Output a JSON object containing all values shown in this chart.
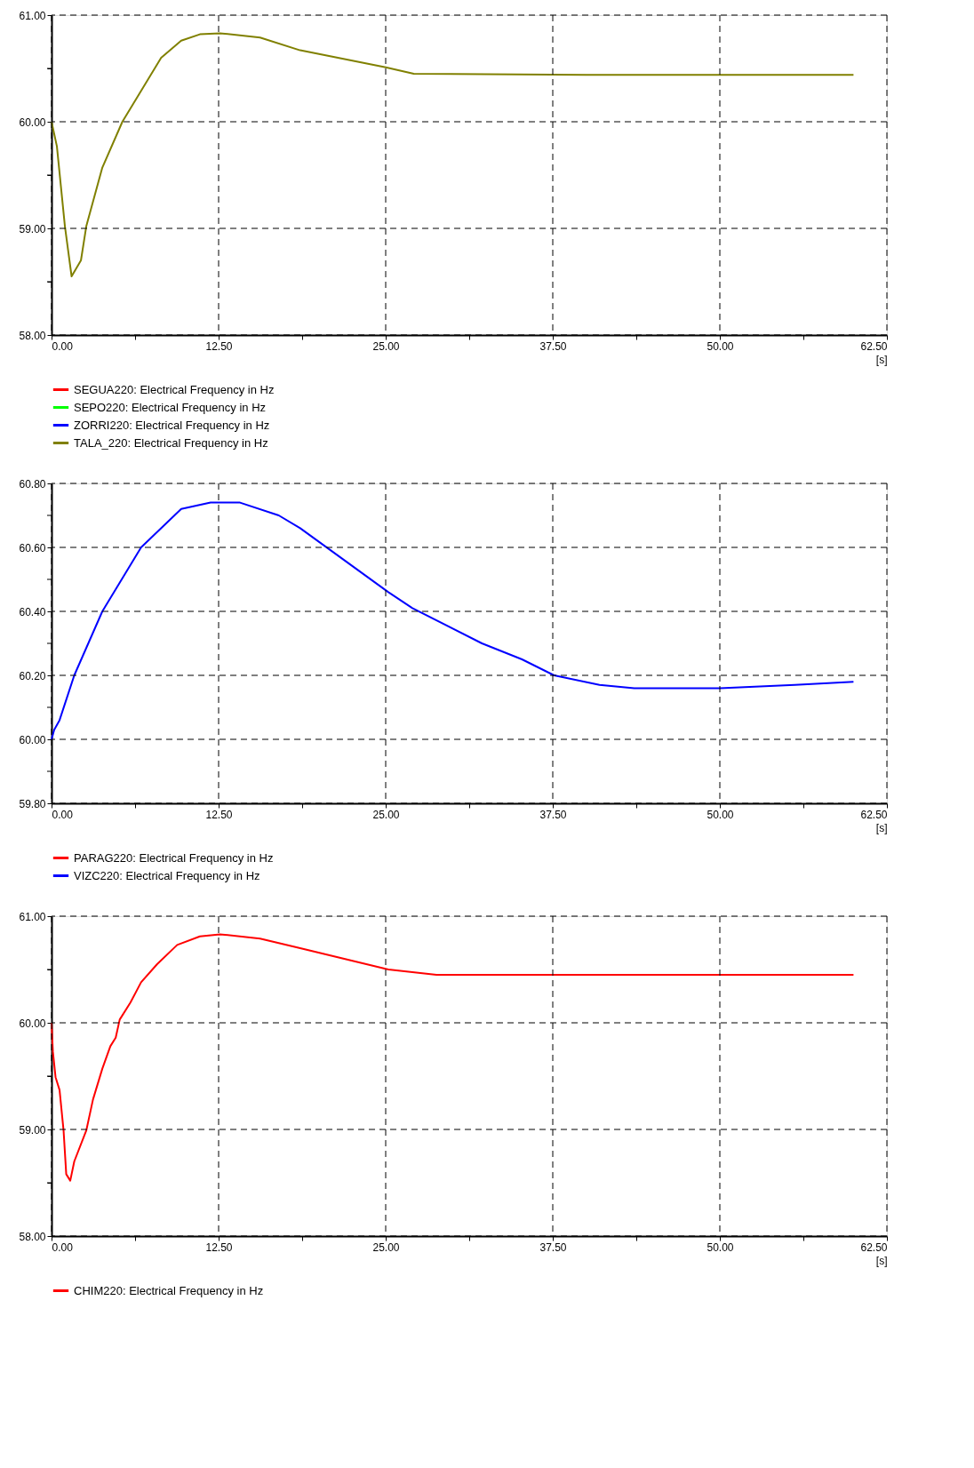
{
  "chart_data": [
    {
      "type": "line",
      "xlabel": "[s]",
      "xlim": [
        0,
        62.5
      ],
      "ylim": [
        58,
        61
      ],
      "grid": true,
      "legend": "bottom",
      "marker": "none",
      "line_style": "solid",
      "xticks": [
        {
          "value": 0,
          "label": "0.00"
        },
        {
          "value": 6.25,
          "label": null
        },
        {
          "value": 12.5,
          "label": "12.50"
        },
        {
          "value": 18.75,
          "label": null
        },
        {
          "value": 25,
          "label": "25.00"
        },
        {
          "value": 31.25,
          "label": null
        },
        {
          "value": 37.5,
          "label": "37.50"
        },
        {
          "value": 43.75,
          "label": null
        },
        {
          "value": 50,
          "label": "50.00"
        },
        {
          "value": 56.25,
          "label": null
        },
        {
          "value": 62.5,
          "label": "62.50"
        }
      ],
      "yticks": [
        {
          "value": 58,
          "label": "58.00"
        },
        {
          "value": 58.5,
          "label": null
        },
        {
          "value": 59,
          "label": "59.00"
        },
        {
          "value": 59.5,
          "label": null
        },
        {
          "value": 60,
          "label": "60.00"
        },
        {
          "value": 60.5,
          "label": null
        },
        {
          "value": 61,
          "label": "61.00"
        }
      ],
      "x": [
        0,
        0.4,
        1.0,
        1.5,
        2.2,
        2.6,
        3.8,
        5.3,
        6.7,
        8.2,
        9.7,
        11.1,
        12.6,
        15.6,
        18.6,
        25,
        27.1,
        40,
        50,
        60
      ],
      "series": [
        {
          "name": "SEGUA220: Electrical Frequency in Hz",
          "color": "#ff0000",
          "values": [
            null,
            null,
            null,
            null,
            null,
            null,
            null,
            null,
            null,
            null,
            null,
            null,
            null,
            null,
            null,
            null,
            null,
            null,
            null,
            null
          ]
        },
        {
          "name": "SEPO220: Electrical Frequency in Hz",
          "color": "#00ff00",
          "values": [
            null,
            null,
            null,
            null,
            null,
            null,
            null,
            null,
            null,
            null,
            null,
            null,
            null,
            null,
            null,
            null,
            null,
            null,
            null,
            null
          ]
        },
        {
          "name": "ZORRI220: Electrical Frequency in Hz",
          "color": "#0000ff",
          "values": [
            null,
            null,
            null,
            null,
            null,
            null,
            null,
            null,
            null,
            null,
            null,
            null,
            null,
            null,
            null,
            null,
            null,
            null,
            null,
            null
          ]
        },
        {
          "name": "TALA_220: Electrical Frequency in Hz",
          "color": "#808000",
          "values": [
            60.0,
            59.77,
            59.02,
            58.55,
            58.7,
            59.02,
            59.57,
            60.0,
            60.29,
            60.6,
            60.76,
            60.82,
            60.83,
            60.79,
            60.67,
            60.51,
            60.45,
            60.44,
            60.44,
            60.44
          ]
        }
      ]
    },
    {
      "type": "line",
      "xlabel": "[s]",
      "xlim": [
        0,
        62.5
      ],
      "ylim": [
        59.8,
        60.8
      ],
      "grid": true,
      "legend": "bottom",
      "marker": "none",
      "line_style": "solid",
      "xticks": [
        {
          "value": 0,
          "label": "0.00"
        },
        {
          "value": 6.25,
          "label": null
        },
        {
          "value": 12.5,
          "label": "12.50"
        },
        {
          "value": 18.75,
          "label": null
        },
        {
          "value": 25,
          "label": "25.00"
        },
        {
          "value": 31.25,
          "label": null
        },
        {
          "value": 37.5,
          "label": "37.50"
        },
        {
          "value": 43.75,
          "label": null
        },
        {
          "value": 50,
          "label": "50.00"
        },
        {
          "value": 56.25,
          "label": null
        },
        {
          "value": 62.5,
          "label": "62.50"
        }
      ],
      "yticks": [
        {
          "value": 59.8,
          "label": "59.80"
        },
        {
          "value": 59.9,
          "label": null
        },
        {
          "value": 60.0,
          "label": "60.00"
        },
        {
          "value": 60.1,
          "label": null
        },
        {
          "value": 60.2,
          "label": "60.20"
        },
        {
          "value": 60.3,
          "label": null
        },
        {
          "value": 60.4,
          "label": "60.40"
        },
        {
          "value": 60.5,
          "label": null
        },
        {
          "value": 60.6,
          "label": "60.60"
        },
        {
          "value": 60.7,
          "label": null
        },
        {
          "value": 60.8,
          "label": "60.80"
        }
      ],
      "x": [
        0,
        0.2,
        0.6,
        1.7,
        3.8,
        6.7,
        9.7,
        11.9,
        14.1,
        17.0,
        18.6,
        25.2,
        27.0,
        32.2,
        35.2,
        37.6,
        41.0,
        43.6,
        50,
        55.6,
        60
      ],
      "series": [
        {
          "name": "PARAG220: Electrical Frequency in Hz",
          "color": "#ff0000",
          "values": [
            null,
            null,
            null,
            null,
            null,
            null,
            null,
            null,
            null,
            null,
            null,
            null,
            null,
            null,
            null,
            null,
            null,
            null,
            null,
            null,
            null
          ]
        },
        {
          "name": "VIZC220: Electrical Frequency in Hz",
          "color": "#0000ff",
          "values": [
            60.0,
            60.03,
            60.06,
            60.2,
            60.4,
            60.6,
            60.72,
            60.74,
            60.74,
            60.7,
            60.66,
            60.46,
            60.41,
            60.3,
            60.25,
            60.2,
            60.17,
            60.16,
            60.16,
            60.17,
            60.18
          ]
        }
      ]
    },
    {
      "type": "line",
      "xlabel": "[s]",
      "xlim": [
        0,
        62.5
      ],
      "ylim": [
        58,
        61
      ],
      "grid": true,
      "legend": "bottom",
      "marker": "none",
      "line_style": "solid",
      "xticks": [
        {
          "value": 0,
          "label": "0.00"
        },
        {
          "value": 6.25,
          "label": null
        },
        {
          "value": 12.5,
          "label": "12.50"
        },
        {
          "value": 18.75,
          "label": null
        },
        {
          "value": 25,
          "label": "25.00"
        },
        {
          "value": 31.25,
          "label": null
        },
        {
          "value": 37.5,
          "label": "37.50"
        },
        {
          "value": 43.75,
          "label": null
        },
        {
          "value": 50,
          "label": "50.00"
        },
        {
          "value": 56.25,
          "label": null
        },
        {
          "value": 62.5,
          "label": "62.50"
        }
      ],
      "yticks": [
        {
          "value": 58,
          "label": "58.00"
        },
        {
          "value": 58.5,
          "label": null
        },
        {
          "value": 59,
          "label": "59.00"
        },
        {
          "value": 59.5,
          "label": null
        },
        {
          "value": 60,
          "label": "60.00"
        },
        {
          "value": 60.5,
          "label": null
        },
        {
          "value": 61,
          "label": "61.00"
        }
      ],
      "x": [
        0,
        0.1,
        0.3,
        0.6,
        0.9,
        1.1,
        1.4,
        1.7,
        2.6,
        3.1,
        3.8,
        4.4,
        4.8,
        5.1,
        5.9,
        6.7,
        7.9,
        9.4,
        11.1,
        12.6,
        15.6,
        18.6,
        25.2,
        28.8,
        40,
        50,
        60
      ],
      "series": [
        {
          "name": "CHIM220: Electrical Frequency in Hz",
          "color": "#ff0000",
          "values": [
            60.0,
            59.73,
            59.49,
            59.37,
            58.99,
            58.58,
            58.52,
            58.7,
            58.99,
            59.28,
            59.57,
            59.78,
            59.86,
            60.03,
            60.19,
            60.38,
            60.55,
            60.73,
            60.81,
            60.83,
            60.79,
            60.7,
            60.5,
            60.45,
            60.45,
            60.45,
            60.45
          ]
        }
      ]
    }
  ]
}
